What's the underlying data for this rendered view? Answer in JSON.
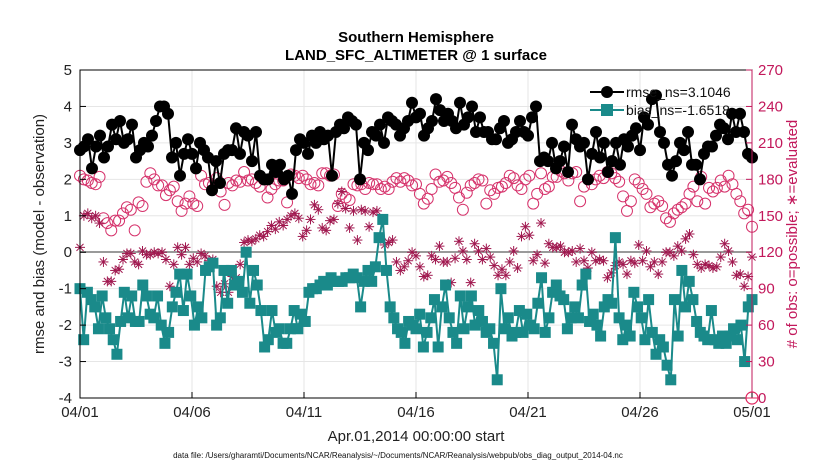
{
  "chart_data": {
    "type": "line",
    "title": "Southern Hemisphere",
    "subtitle": "LAND_SFC_ALTIMETER @ 1 surface",
    "xlabel": "Apr.01,2014 00:00:00 start",
    "ylabel": "rmse and bias (model - observation)",
    "ylabel_right": "# of obs: o=possible; ∗=evaluated",
    "xlim": [
      0,
      30
    ],
    "ylim": [
      -4,
      5
    ],
    "ylim_right": [
      0,
      270
    ],
    "x_ticks": [
      0,
      5,
      10,
      15,
      20,
      25,
      30
    ],
    "x_tick_labels": [
      "04/01",
      "04/06",
      "04/11",
      "04/16",
      "04/21",
      "04/26",
      "05/01"
    ],
    "y_ticks": [
      "-4",
      "-3",
      "-2",
      "-1",
      "0",
      "1",
      "2",
      "3",
      "4",
      "5"
    ],
    "y_ticks_right": [
      "0",
      "30",
      "60",
      "90",
      "120",
      "150",
      "180",
      "210",
      "240",
      "270"
    ],
    "grid": true,
    "legend_position": "top-right",
    "legend": [
      {
        "name": "rmse_ns=3.1046",
        "color": "#000000"
      },
      {
        "name": "bias_ns=-1.6518",
        "color": "#1a8a8a"
      }
    ],
    "series": [
      {
        "name": "rmse",
        "axis": "left",
        "color": "#000000",
        "marker": "circle",
        "values": [
          2.8,
          2.9,
          3.1,
          2.3,
          2.9,
          3.2,
          2.6,
          2.9,
          3.5,
          3.1,
          3.6,
          3.0,
          3.1,
          3.5,
          2.6,
          2.8,
          3.0,
          2.9,
          3.2,
          3.6,
          4.0,
          4.0,
          3.8,
          2.6,
          3.0,
          2.1,
          2.7,
          3.1,
          2.7,
          2.3,
          3.0,
          2.8,
          2.6,
          1.7,
          2.5,
          1.9,
          2.7,
          2.8,
          2.8,
          3.4,
          2.7,
          3.3,
          3.2,
          2.5,
          3.3,
          2.1,
          2.0,
          2.0,
          2.4,
          2.2,
          2.4,
          2.0,
          2.1,
          1.6,
          2.8,
          3.1,
          3.0,
          2.7,
          3.2,
          3.0,
          3.3,
          3.1,
          3.2,
          2.1,
          3.3,
          3.5,
          3.4,
          3.7,
          3.6,
          3.5,
          2.0,
          3.0,
          2.8,
          3.3,
          3.2,
          3.5,
          3.0,
          3.7,
          3.6,
          3.5,
          3.2,
          3.4,
          3.6,
          4.1,
          3.7,
          3.8,
          3.2,
          3.4,
          3.6,
          4.2,
          3.9,
          3.6,
          3.8,
          3.6,
          3.4,
          4.1,
          3.5,
          3.7,
          4.0,
          3.3,
          3.7,
          3.3,
          3.3,
          3.1,
          3.1,
          3.4,
          3.6,
          3.0,
          3.1,
          3.3,
          3.6,
          3.3,
          3.2,
          3.7,
          4.0,
          2.5,
          2.6,
          2.5,
          3.0,
          2.3,
          2.5,
          2.9,
          2.2,
          3.5,
          3.1,
          2.9,
          3.0,
          2.0,
          2.7,
          3.3,
          2.6,
          3.0,
          2.2,
          2.5,
          3.0,
          2.4,
          3.1,
          2.9,
          3.2,
          3.4,
          2.8,
          3.7,
          3.5,
          4.2,
          4.3,
          3.3,
          3.0,
          2.4,
          2.1,
          2.5,
          3.0,
          2.8,
          3.3,
          2.4,
          2.4,
          2.0,
          2.7,
          2.9,
          2.9,
          3.2,
          3.5,
          3.4,
          3.1,
          3.8,
          3.3,
          3.8,
          3.3,
          2.7,
          2.6
        ]
      },
      {
        "name": "bias",
        "axis": "left",
        "color": "#1a8a8a",
        "marker": "square",
        "values": [
          -1.0,
          -2.4,
          -1.1,
          -1.3,
          -1.5,
          -2.1,
          -1.2,
          -1.8,
          -2.1,
          -2.4,
          -2.8,
          -1.9,
          -1.1,
          -1.8,
          -1.2,
          -1.9,
          -1.9,
          -0.9,
          -1.2,
          -1.7,
          -1.8,
          -1.2,
          -2.0,
          -2.5,
          -2.2,
          -1.5,
          -1.1,
          -0.6,
          -1.6,
          -0.6,
          -1.2,
          -2.0,
          -1.5,
          -1.8,
          -0.5,
          -0.4,
          -0.3,
          -2.0,
          -1.8,
          -0.5,
          -1.4,
          -0.5,
          -0.9,
          -0.8,
          -1.1,
          0.0,
          -1.4,
          -0.5,
          -0.9,
          -1.6,
          -2.6,
          -2.4,
          -1.6,
          -2.2,
          -2.1,
          -2.5,
          -2.5,
          -2.1,
          -1.6,
          -2.1,
          -1.7,
          -1.9,
          -1.1,
          -1.0,
          -1.0,
          -0.9,
          -0.8,
          -0.9,
          -0.7,
          -0.8,
          -0.8,
          -0.8,
          -0.7,
          -0.7,
          -0.6,
          -0.7,
          -1.5,
          -0.8,
          -0.5,
          -0.8,
          -0.4,
          0.4,
          0.9,
          -0.5,
          -1.5,
          -1.8,
          -2.1,
          -2.2,
          -2.5,
          -1.9,
          -2.0,
          -2.1,
          -1.7,
          -2.6,
          -2.2,
          -1.8,
          -1.3,
          -2.6,
          -1.5,
          -0.9,
          -1.8,
          -2.2,
          -2.5,
          -1.2,
          -2.1,
          -1.5,
          -1.2,
          -2.0,
          -1.6,
          -1.9,
          -2.2,
          -2.1,
          -2.5,
          -3.5,
          -1.0,
          -2.1,
          -1.8,
          -2.3,
          -2.2,
          -1.6,
          -2.2,
          -1.7,
          -2.0,
          -2.1,
          -1.4,
          -0.7,
          -2.2,
          -1.8,
          -1.1,
          -0.9,
          -1.2,
          -1.3,
          -2.1,
          -1.8,
          -1.5,
          -1.8,
          -0.9,
          -0.6,
          -1.9,
          -1.7,
          -2.0,
          -2.3,
          -1.5,
          -1.3,
          -1.4,
          0.4,
          -1.8,
          -2.4,
          -2.0,
          -2.3,
          -1.1,
          -1.5,
          -1.8,
          -2.4,
          -1.3,
          -2.2,
          -2.8,
          -2.4,
          -2.6,
          -3.1,
          -3.5,
          -1.3,
          -2.3,
          -0.5,
          -1.5,
          -0.8,
          -1.3,
          -1.9,
          -2.2,
          -2.3,
          -2.4,
          -1.6,
          -2.4,
          -2.5,
          -2.3,
          -2.5,
          -2.3,
          -2.1,
          -2.4,
          -2.0,
          -3.0,
          -1.5,
          -1.3
        ]
      },
      {
        "name": "# obs possible",
        "axis": "right",
        "color": "#d6336c",
        "marker": "open-circle",
        "values": [
          183,
          180,
          179,
          177,
          176,
          182,
          148,
          144,
          138,
          146,
          146,
          152,
          157,
          155,
          138,
          161,
          158,
          178,
          185,
          180,
          175,
          175,
          167,
          171,
          174,
          162,
          154,
          160,
          166,
          160,
          158,
          183,
          176,
          177,
          175,
          181,
          170,
          159,
          177,
          175,
          179,
          178,
          186,
          179,
          180,
          177,
          174,
          180,
          165,
          172,
          176,
          179,
          179,
          161,
          184,
          183,
          181,
          183,
          180,
          176,
          177,
          175,
          185,
          185,
          183,
          184,
          158,
          168,
          165,
          163,
          176,
          175,
          176,
          172,
          177,
          176,
          176,
          172,
          174,
          172,
          178,
          181,
          178,
          181,
          179,
          175,
          176,
          168,
          160,
          164,
          172,
          184,
          178,
          179,
          182,
          177,
          173,
          165,
          155,
          169,
          175,
          177,
          180,
          179,
          160,
          171,
          168,
          173,
          174,
          177,
          183,
          181,
          175,
          172,
          180,
          183,
          160,
          168,
          185,
          172,
          174,
          182,
          182,
          187,
          185,
          179,
          185,
          186,
          162,
          174,
          180,
          176,
          180,
          183,
          181,
          186,
          185,
          181,
          178,
          166,
          154,
          162,
          180,
          177,
          172,
          168,
          157,
          160,
          162,
          158,
          148,
          145,
          152,
          155,
          157,
          160,
          168,
          174,
          162,
          182,
          160,
          173,
          170,
          173,
          179,
          174,
          183,
          176,
          168,
          162,
          152,
          155,
          141
        ]
      },
      {
        "name": "# obs evaluated",
        "axis": "right",
        "color": "#a0184f",
        "marker": "asterisk",
        "values": [
          124,
          150,
          152,
          148,
          150,
          144,
          112,
          96,
          96,
          105,
          106,
          114,
          119,
          119,
          112,
          110,
          121,
          118,
          118,
          120,
          119,
          120,
          114,
          92,
          110,
          124,
          118,
          124,
          110,
          115,
          112,
          119,
          117,
          113,
          114,
          92,
          87,
          94,
          87,
          100,
          99,
          110,
          128,
          130,
          129,
          131,
          134,
          133,
          137,
          142,
          139,
          145,
          142,
          147,
          150,
          152,
          148,
          133,
          138,
          147,
          159,
          155,
          140,
          138,
          146,
          147,
          160,
          170,
          156,
          140,
          154,
          130,
          155,
          154,
          141,
          153,
          154,
          131,
          126,
          128,
          130,
          112,
          105,
          108,
          113,
          120,
          117,
          108,
          100,
          101,
          117,
          114,
          125,
          112,
          112,
          95,
          115,
          129,
          121,
          114,
          95,
          127,
          121,
          114,
          123,
          116,
          109,
          101,
          106,
          101,
          112,
          121,
          107,
          133,
          141,
          134,
          113,
          118,
          144,
          111,
          127,
          124,
          124,
          125,
          120,
          120,
          121,
          112,
          123,
          113,
          107,
          120,
          113,
          114,
          113,
          99,
          103,
          109,
          112,
          110,
          102,
          113,
          111,
          126,
          113,
          121,
          108,
          112,
          102,
          112,
          120,
          120,
          117,
          125,
          121,
          131,
          135,
          118,
          110,
          107,
          110,
          109,
          107,
          108,
          116,
          127,
          121,
          112,
          101,
          102,
          92,
          100,
          116
        ]
      }
    ]
  },
  "footer": "data file: /Users/gharamti/Documents/NCAR/Reanalysis/~/Documents/NCAR/Reanalysis/webpub/obs_diag_output_2014-04.nc"
}
